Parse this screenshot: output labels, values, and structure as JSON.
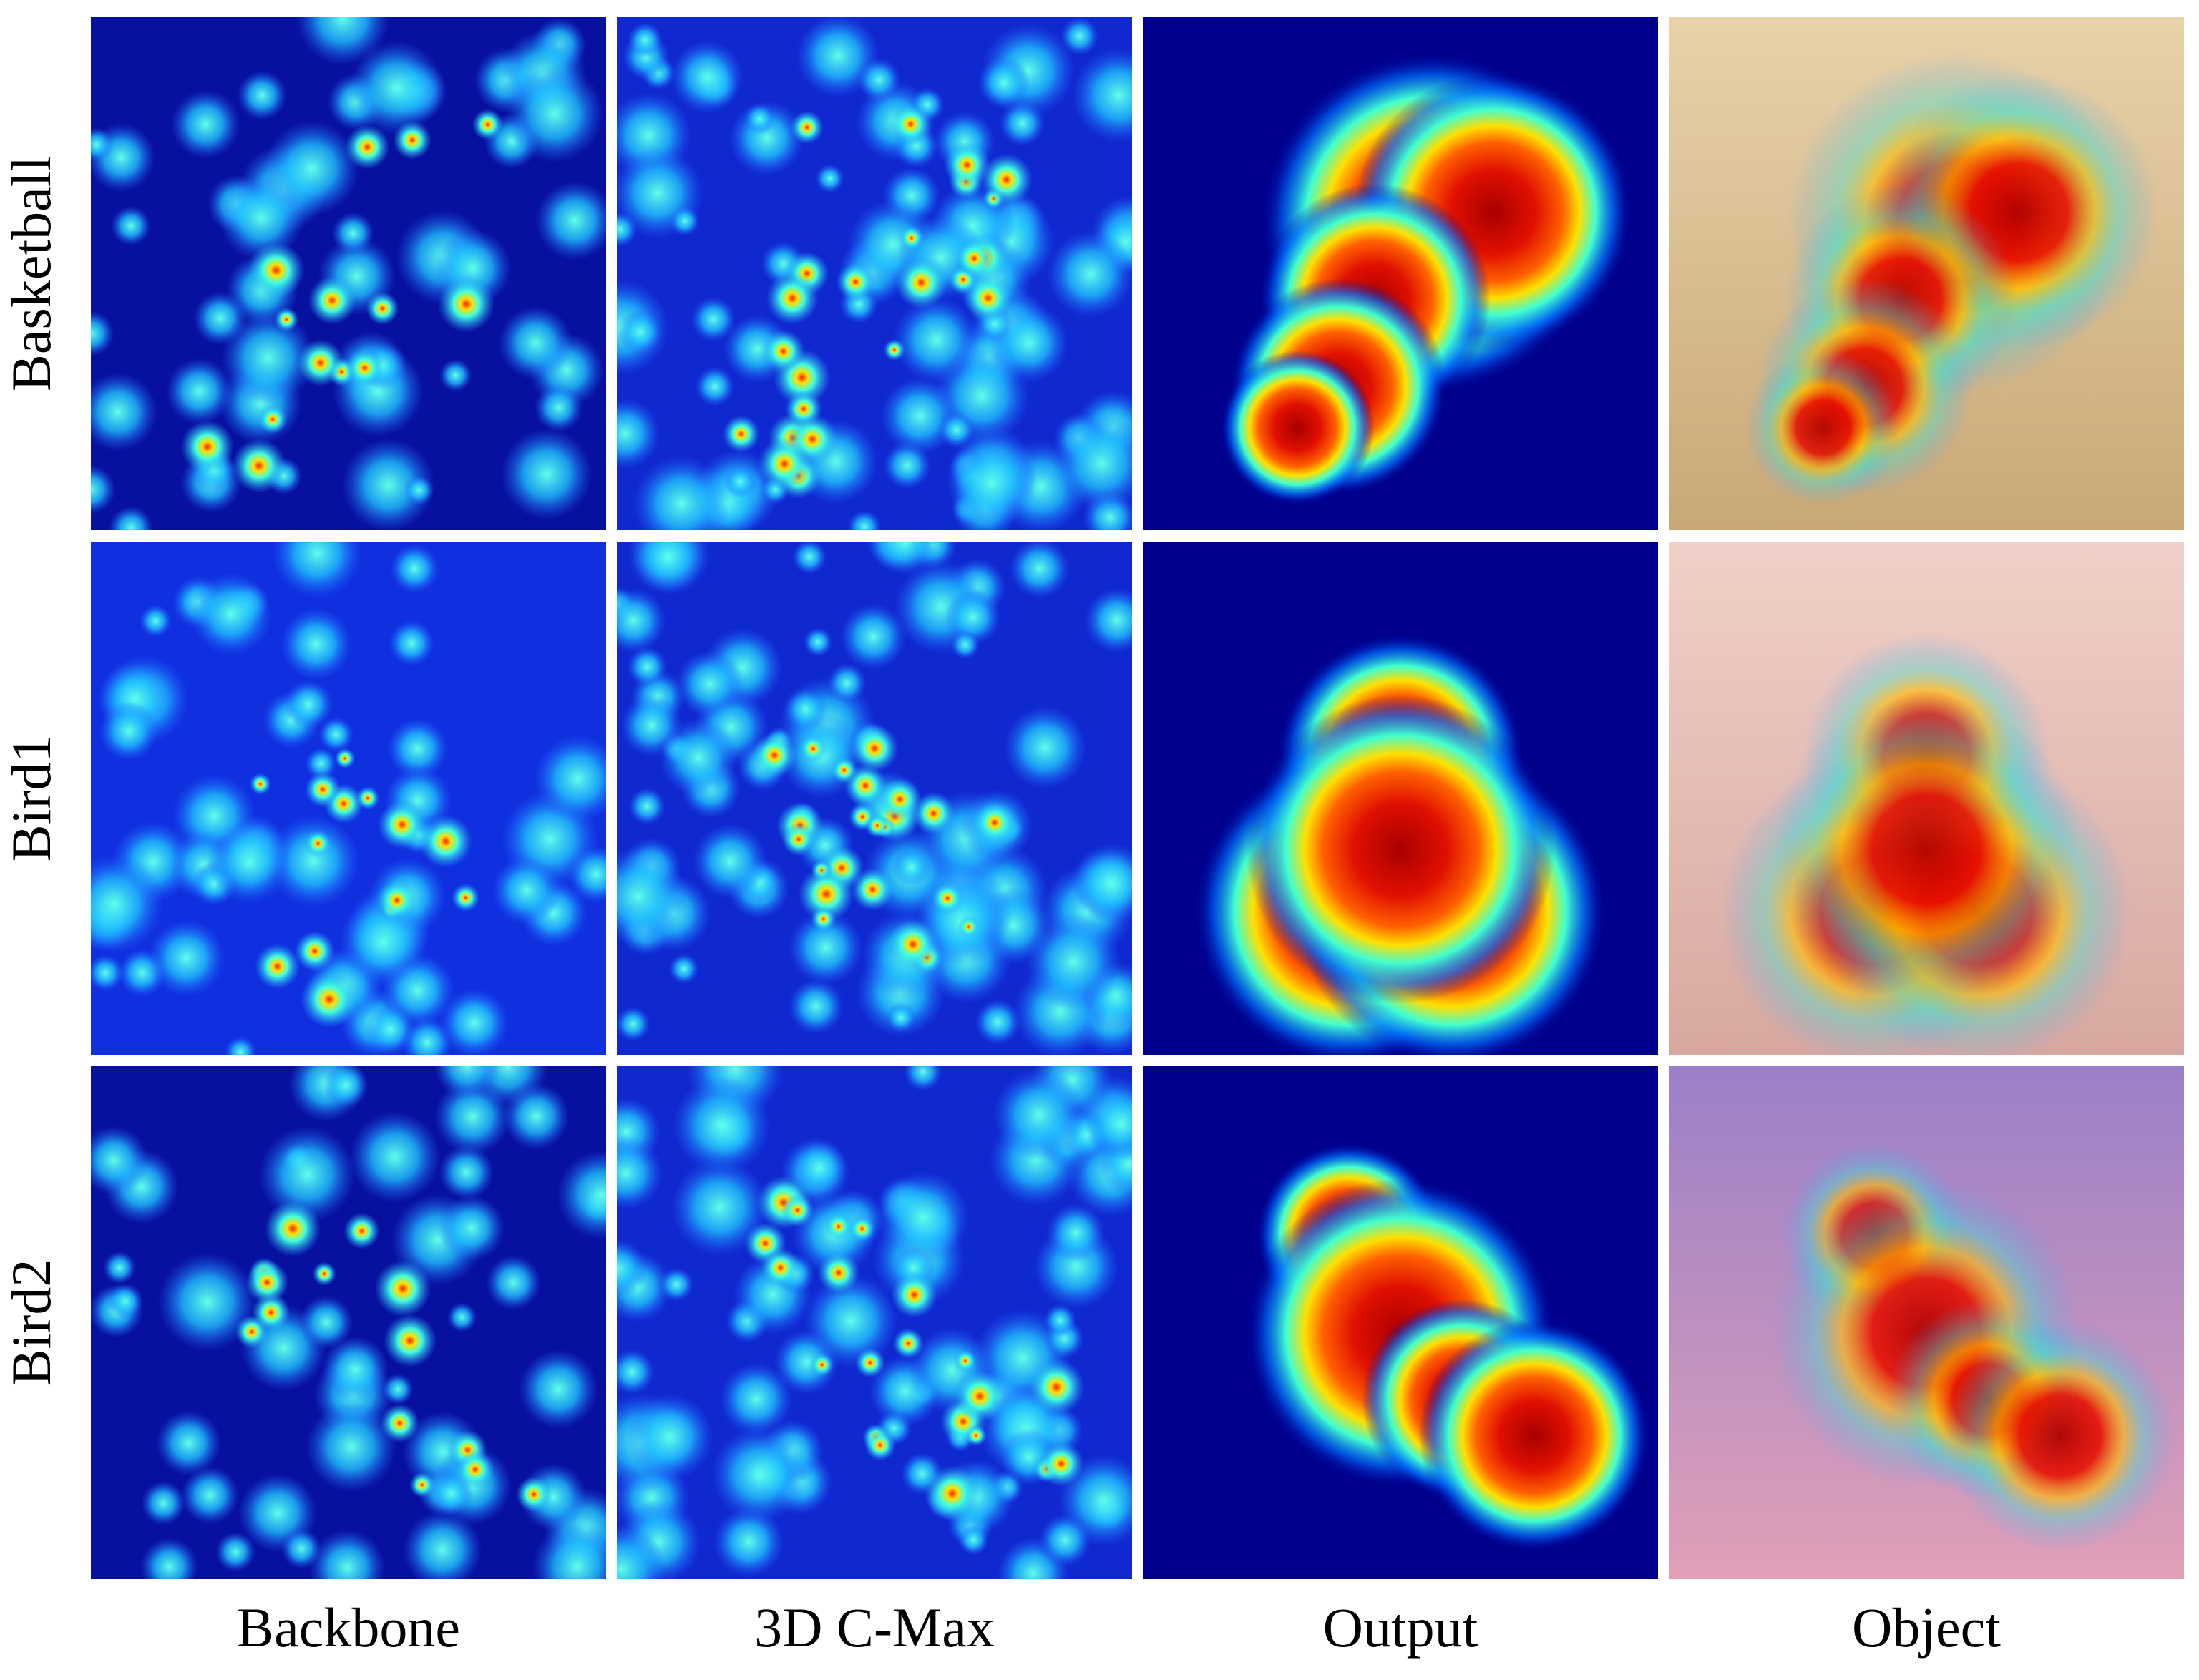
{
  "row_labels": [
    "Basketball",
    "Bird1",
    "Bird2"
  ],
  "column_labels": [
    "Backbone",
    "3D C-Max",
    "Output",
    "Object"
  ]
}
